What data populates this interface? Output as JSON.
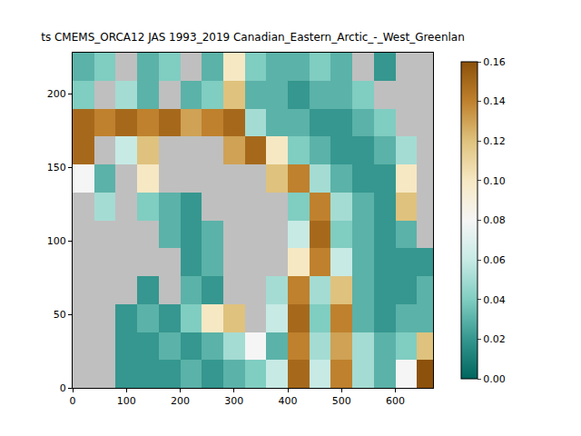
{
  "chart_data": {
    "type": "heatmap",
    "title": "ts CMEMS_ORCA12 JAS 1993_2019 Canadian_Eastern_Arctic_-_West_Greenlan",
    "x": [
      20,
      60,
      100,
      140,
      180,
      220,
      260,
      300,
      340,
      380,
      420,
      460,
      500,
      540,
      580,
      620,
      660
    ],
    "y": [
      9.5,
      28.5,
      47.5,
      66.5,
      85.5,
      104.5,
      123.5,
      142.5,
      161.5,
      180.5,
      199.5,
      218.5
    ],
    "z": [
      [
        null,
        null,
        0.02,
        0.02,
        0.02,
        0.03,
        0.02,
        0.03,
        0.04,
        0.06,
        0.15,
        0.06,
        0.14,
        0.05,
        0.03,
        0.08,
        0.16
      ],
      [
        null,
        null,
        0.02,
        0.02,
        0.03,
        0.02,
        0.03,
        0.05,
        0.08,
        0.03,
        0.14,
        0.05,
        0.13,
        0.05,
        0.03,
        0.04,
        0.12
      ],
      [
        null,
        null,
        0.02,
        0.03,
        0.02,
        0.04,
        0.1,
        0.12,
        null,
        0.06,
        0.15,
        0.04,
        0.14,
        0.03,
        0.02,
        0.03,
        0.03
      ],
      [
        null,
        null,
        null,
        0.02,
        null,
        0.03,
        0.02,
        null,
        null,
        0.05,
        0.14,
        0.05,
        0.12,
        0.03,
        0.02,
        0.02,
        0.03
      ],
      [
        null,
        null,
        null,
        null,
        null,
        0.02,
        0.03,
        null,
        null,
        null,
        0.1,
        0.14,
        0.06,
        0.03,
        0.02,
        0.02,
        0.02
      ],
      [
        null,
        null,
        null,
        null,
        0.03,
        0.02,
        0.03,
        null,
        null,
        null,
        0.06,
        0.15,
        0.04,
        0.03,
        0.02,
        0.03,
        null
      ],
      [
        null,
        0.05,
        null,
        0.04,
        0.03,
        0.02,
        null,
        null,
        null,
        null,
        0.04,
        0.14,
        0.05,
        0.03,
        0.02,
        0.12,
        null
      ],
      [
        0.08,
        0.03,
        null,
        0.1,
        null,
        null,
        null,
        null,
        null,
        0.12,
        0.14,
        0.05,
        0.03,
        0.02,
        0.02,
        0.1,
        null
      ],
      [
        0.15,
        null,
        0.06,
        0.12,
        null,
        null,
        null,
        0.13,
        0.15,
        0.1,
        0.04,
        0.03,
        0.02,
        0.02,
        0.03,
        0.05,
        null
      ],
      [
        0.15,
        0.14,
        0.15,
        0.14,
        0.15,
        0.13,
        0.14,
        0.15,
        0.05,
        0.03,
        0.03,
        0.02,
        0.02,
        0.03,
        0.04,
        null,
        null
      ],
      [
        0.04,
        null,
        0.05,
        0.03,
        null,
        0.03,
        0.04,
        0.12,
        0.03,
        0.03,
        0.02,
        0.03,
        0.03,
        0.04,
        null,
        null,
        null
      ],
      [
        0.03,
        0.04,
        null,
        0.03,
        0.04,
        null,
        0.03,
        0.1,
        0.04,
        0.03,
        0.03,
        0.04,
        0.03,
        null,
        0.02,
        null,
        null
      ]
    ],
    "xlim": [
      0,
      670
    ],
    "xticks": [
      0,
      100,
      200,
      300,
      400,
      500,
      600
    ],
    "ylim": [
      0,
      228
    ],
    "yticks": [
      0,
      50,
      100,
      150,
      200
    ],
    "zlim": [
      0,
      0.16
    ],
    "zticks": [
      {
        "value": 0,
        "label": "0.00"
      },
      {
        "value": 0.02,
        "label": "0.02"
      },
      {
        "value": 0.04,
        "label": "0.04"
      },
      {
        "value": 0.06,
        "label": "0.06"
      },
      {
        "value": 0.08,
        "label": "0.08"
      },
      {
        "value": 0.1,
        "label": "0.10"
      },
      {
        "value": 0.12,
        "label": "0.12"
      },
      {
        "value": 0.14,
        "label": "0.14"
      },
      {
        "value": 0.16,
        "label": "0.16"
      }
    ]
  }
}
